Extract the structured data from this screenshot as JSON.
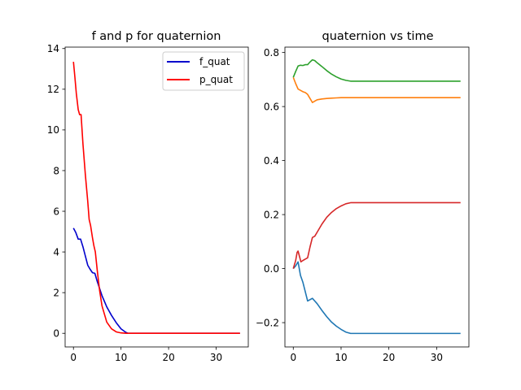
{
  "chart_data": [
    {
      "type": "line",
      "title": "f and p for quaternion",
      "xlabel": "",
      "ylabel": "",
      "xlim": [
        -1.75,
        36.75
      ],
      "ylim": [
        -0.67,
        14.07
      ],
      "xticks": [
        0,
        10,
        20,
        30
      ],
      "xtick_labels": [
        "0",
        "10",
        "20",
        "30"
      ],
      "yticks": [
        0,
        2,
        4,
        6,
        8,
        10,
        12,
        14
      ],
      "ytick_labels": [
        "0",
        "2",
        "4",
        "6",
        "8",
        "10",
        "12",
        "14"
      ],
      "grid": false,
      "legend": {
        "placement": "upper-right",
        "entries": [
          "f_quat",
          "p_quat"
        ]
      },
      "series": [
        {
          "name": "f_quat",
          "color": "#0000cc",
          "x": [
            0,
            0.5,
            1.0,
            1.5,
            2.0,
            2.5,
            3.0,
            3.5,
            4.0,
            4.5,
            5.0,
            5.5,
            6.0,
            7.0,
            8.0,
            9.0,
            10.0,
            11.0,
            11.5,
            13,
            20,
            30,
            35
          ],
          "y": [
            5.17,
            4.95,
            4.63,
            4.63,
            4.25,
            3.8,
            3.35,
            3.15,
            2.98,
            2.95,
            2.55,
            2.2,
            1.85,
            1.3,
            0.88,
            0.52,
            0.22,
            0.05,
            0.0,
            0.0,
            0.0,
            0.0,
            0.0
          ]
        },
        {
          "name": "p_quat",
          "color": "#ff0000",
          "x": [
            0,
            0.3,
            0.6,
            1.0,
            1.3,
            1.6,
            2.0,
            2.5,
            3.0,
            3.3,
            3.6,
            4.0,
            4.3,
            4.6,
            5.0,
            5.5,
            6.0,
            7.0,
            8.0,
            9.0,
            10.0,
            11.0,
            11.5,
            13,
            20,
            30,
            35
          ],
          "y": [
            13.35,
            12.6,
            11.8,
            11.0,
            10.75,
            10.75,
            9.3,
            7.8,
            6.5,
            5.6,
            5.3,
            4.7,
            4.3,
            4.0,
            3.1,
            2.1,
            1.35,
            0.55,
            0.22,
            0.07,
            0.02,
            0.0,
            0.0,
            0.0,
            0.0,
            0.0,
            0.0
          ]
        }
      ]
    },
    {
      "type": "line",
      "title": "quaternion vs time",
      "xlabel": "",
      "ylabel": "",
      "xlim": [
        -1.75,
        36.75
      ],
      "ylim": [
        -0.29,
        0.82
      ],
      "xticks": [
        0,
        10,
        20,
        30
      ],
      "xtick_labels": [
        "0",
        "10",
        "20",
        "30"
      ],
      "yticks": [
        -0.2,
        0.0,
        0.2,
        0.4,
        0.6,
        0.8
      ],
      "ytick_labels": [
        "−0.2",
        "0.0",
        "0.2",
        "0.4",
        "0.6",
        "0.8"
      ],
      "grid": false,
      "series": [
        {
          "color": "#1f77b4",
          "x": [
            0,
            0.5,
            1.0,
            1.5,
            2.0,
            2.5,
            3.0,
            3.5,
            4.0,
            4.5,
            5.0,
            6.0,
            7.0,
            8.0,
            9.0,
            10.0,
            11.0,
            12.0,
            15,
            20,
            30,
            35
          ],
          "y": [
            0.0,
            0.01,
            0.025,
            -0.025,
            -0.05,
            -0.085,
            -0.12,
            -0.115,
            -0.11,
            -0.12,
            -0.13,
            -0.155,
            -0.178,
            -0.198,
            -0.213,
            -0.225,
            -0.235,
            -0.24,
            -0.24,
            -0.24,
            -0.24,
            -0.24
          ]
        },
        {
          "color": "#ff7f0e",
          "x": [
            0,
            0.5,
            1.0,
            1.5,
            2.0,
            2.5,
            3.0,
            3.5,
            4.0,
            4.5,
            5.0,
            6.0,
            7.0,
            8.0,
            9.0,
            10.0,
            12.0,
            15,
            20,
            30,
            35
          ],
          "y": [
            0.708,
            0.685,
            0.665,
            0.66,
            0.655,
            0.652,
            0.645,
            0.63,
            0.615,
            0.62,
            0.625,
            0.628,
            0.63,
            0.631,
            0.632,
            0.633,
            0.633,
            0.633,
            0.633,
            0.633,
            0.633
          ]
        },
        {
          "color": "#2ca02c",
          "x": [
            0,
            0.5,
            1.0,
            1.5,
            2.0,
            2.5,
            3.0,
            3.5,
            4.0,
            4.5,
            5.0,
            6.0,
            7.0,
            8.0,
            9.0,
            10.0,
            11.0,
            12.0,
            15,
            20,
            30,
            35
          ],
          "y": [
            0.708,
            0.73,
            0.75,
            0.753,
            0.752,
            0.755,
            0.755,
            0.765,
            0.773,
            0.77,
            0.762,
            0.748,
            0.733,
            0.72,
            0.71,
            0.702,
            0.697,
            0.694,
            0.694,
            0.694,
            0.694,
            0.694
          ]
        },
        {
          "color": "#d62728",
          "x": [
            0,
            0.5,
            0.8,
            1.0,
            1.3,
            1.6,
            2.0,
            2.5,
            3.0,
            3.5,
            4.0,
            4.5,
            5.0,
            6.0,
            7.0,
            8.0,
            9.0,
            10.0,
            11.0,
            12.0,
            15,
            20,
            30,
            35
          ],
          "y": [
            0.0,
            0.03,
            0.06,
            0.065,
            0.045,
            0.025,
            0.03,
            0.035,
            0.04,
            0.08,
            0.115,
            0.12,
            0.135,
            0.165,
            0.19,
            0.208,
            0.222,
            0.232,
            0.24,
            0.244,
            0.244,
            0.244,
            0.244,
            0.244
          ]
        }
      ]
    }
  ]
}
